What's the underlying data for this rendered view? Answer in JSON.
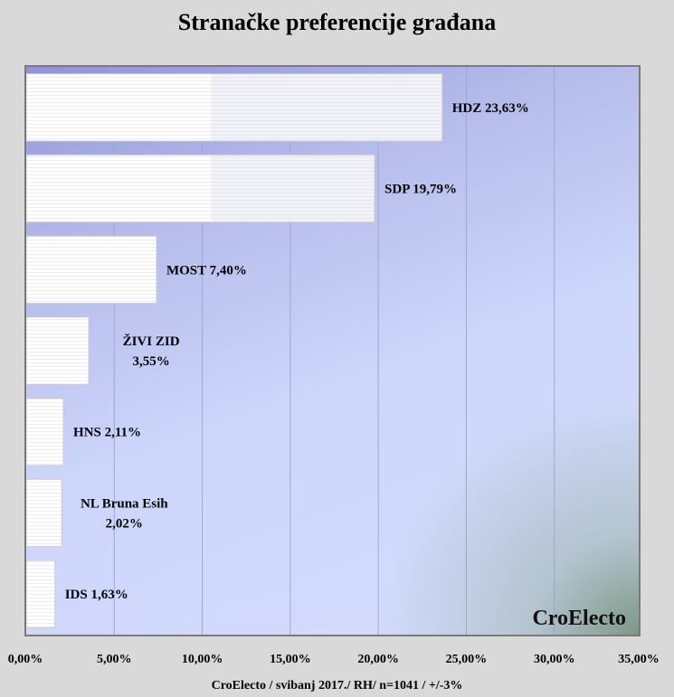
{
  "chart_data": {
    "type": "bar",
    "orientation": "horizontal",
    "title": "Stranačke preferencije građana",
    "categories": [
      "HDZ",
      "SDP",
      "MOST",
      "ŽIVI ZID",
      "HNS",
      "NL Bruna Esih",
      "IDS"
    ],
    "values": [
      23.63,
      19.79,
      7.4,
      3.55,
      2.11,
      2.02,
      1.63
    ],
    "data_labels": [
      [
        "HDZ 23,63%"
      ],
      [
        "SDP 19,79%"
      ],
      [
        "MOST 7,40%"
      ],
      [
        "ŽIVI ZID",
        "3,55%"
      ],
      [
        "HNS 2,11%"
      ],
      [
        "NL Bruna Esih",
        "2,02%"
      ],
      [
        "IDS 1,63%"
      ]
    ],
    "xlim": [
      0,
      35
    ],
    "x_ticks": [
      "0,00%",
      "5,00%",
      "10,00%",
      "15,00%",
      "20,00%",
      "25,00%",
      "30,00%",
      "35,00%"
    ],
    "xlabel": "CroElecto / svibanj 2017./ RH/ n=1041 / +/-3%",
    "ylabel": "",
    "grid": "vertical",
    "legend": "none"
  },
  "watermark": "CroElecto",
  "colors": {
    "bar_fill": "#ffffff",
    "plot_bg_light": "#d4ddfd",
    "plot_bg_dark": "#8f93d8",
    "page_bg": "#d9d9d9"
  }
}
